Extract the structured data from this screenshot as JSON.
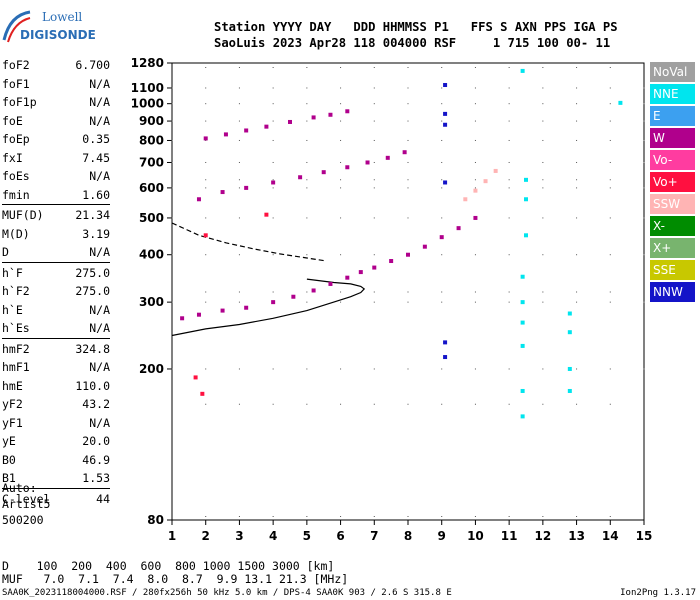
{
  "logo": {
    "line1": "Lowell",
    "line2": "DIGISONDE"
  },
  "header": {
    "line1": "Station YYYY DAY   DDD HHMMSS P1   FFS S AXN PPS IGA PS",
    "line2": "SaoLuis 2023 Apr28 118 004000 RSF     1 715 100 00- 11"
  },
  "params": [
    {
      "label": "foF2",
      "value": "6.700"
    },
    {
      "label": "foF1",
      "value": "N/A"
    },
    {
      "label": "foF1p",
      "value": "N/A"
    },
    {
      "label": "foE",
      "value": "N/A"
    },
    {
      "label": "foEp",
      "value": "0.35"
    },
    {
      "label": "fxI",
      "value": "7.45"
    },
    {
      "label": "foEs",
      "value": "N/A"
    },
    {
      "label": "fmin",
      "value": "1.60"
    },
    {
      "label": "MUF(D)",
      "value": "21.34",
      "sep": true
    },
    {
      "label": "M(D)",
      "value": "3.19"
    },
    {
      "label": "D",
      "value": "N/A"
    },
    {
      "label": "h`F",
      "value": "275.0",
      "sep": true
    },
    {
      "label": "h`F2",
      "value": "275.0"
    },
    {
      "label": "h`E",
      "value": "N/A"
    },
    {
      "label": "h`Es",
      "value": "N/A"
    },
    {
      "label": "hmF2",
      "value": "324.8",
      "sep": true
    },
    {
      "label": "hmF1",
      "value": "N/A"
    },
    {
      "label": "hmE",
      "value": "110.0"
    },
    {
      "label": "yF2",
      "value": "43.2"
    },
    {
      "label": "yF1",
      "value": "N/A"
    },
    {
      "label": "yE",
      "value": "20.0"
    },
    {
      "label": "B0",
      "value": "46.9"
    },
    {
      "label": "B1",
      "value": "1.53"
    },
    {
      "label": "C-level",
      "value": "44",
      "sep": true
    }
  ],
  "auto": {
    "line1": "Auto:",
    "line2": "Artist5",
    "line3": "500200"
  },
  "legend": [
    {
      "label": "NoVal",
      "color": "#a0a0a0"
    },
    {
      "label": "NNE",
      "color": "#00e5ee"
    },
    {
      "label": "E",
      "color": "#3ca0f0"
    },
    {
      "label": "W",
      "color": "#b0008c"
    },
    {
      "label": "Vo-",
      "color": "#ff3ca0"
    },
    {
      "label": "Vo+",
      "color": "#ff1040"
    },
    {
      "label": "SSW",
      "color": "#ffb4b4"
    },
    {
      "label": "X-",
      "color": "#008c00"
    },
    {
      "label": "X+",
      "color": "#78b46e"
    },
    {
      "label": "SSE",
      "color": "#c8c800"
    },
    {
      "label": "NNW",
      "color": "#1414c8"
    }
  ],
  "bottom": {
    "d_line": "D    100  200  400  600  800 1000 1500 3000 [km]",
    "muf_line": "MUF   7.0  7.1  7.4  8.0  8.7  9.9 13.1 21.3 [MHz]"
  },
  "footer": {
    "left": "SAA0K_2023118004000.RSF / 280fx256h 50 kHz 5.0 km / DPS-4 SAA0K 903 / 2.6 S 315.8 E",
    "right": "Ion2Png 1.3.17"
  },
  "chart_data": {
    "type": "scatter",
    "title": "",
    "xlabel": "",
    "ylabel": "",
    "xlim": [
      1,
      15
    ],
    "ylim": [
      80,
      1280
    ],
    "y_scale": "log",
    "x_ticks": [
      1,
      2,
      3,
      4,
      5,
      6,
      7,
      8,
      9,
      10,
      11,
      12,
      13,
      14,
      15
    ],
    "y_ticks": [
      80,
      200,
      300,
      400,
      500,
      600,
      700,
      800,
      900,
      1000,
      1100,
      1280
    ],
    "series": [
      {
        "trace": "F2 first hop",
        "color": "#b0008c",
        "x": [
          1.3,
          1.8,
          2.5,
          3.2,
          4.0,
          4.6,
          5.2,
          5.7,
          6.2,
          6.6,
          7.0,
          7.5,
          8.0,
          8.5,
          9.0,
          9.5,
          10.0
        ],
        "y": [
          272,
          278,
          285,
          290,
          300,
          310,
          322,
          335,
          348,
          360,
          370,
          385,
          400,
          420,
          445,
          470,
          500
        ]
      },
      {
        "trace": "F2 second hop",
        "color": "#b0008c",
        "x": [
          1.8,
          2.5,
          3.2,
          4.0,
          4.8,
          5.5,
          6.2,
          6.8,
          7.4,
          7.9
        ],
        "y": [
          560,
          585,
          600,
          620,
          640,
          660,
          680,
          700,
          720,
          745
        ]
      },
      {
        "trace": "F2 third hop",
        "color": "#b0008c",
        "x": [
          2.0,
          2.6,
          3.2,
          3.8,
          4.5,
          5.2,
          5.7,
          6.2
        ],
        "y": [
          810,
          830,
          850,
          870,
          895,
          920,
          935,
          955
        ]
      },
      {
        "trace": "extraordinary",
        "color": "#ffb4b4",
        "x": [
          9.7,
          10.0,
          10.3,
          10.6
        ],
        "y": [
          560,
          590,
          625,
          665
        ]
      },
      {
        "trace": "vertical column",
        "color": "#1414c8",
        "x": [
          9.1,
          9.1,
          9.1,
          9.1,
          9.1,
          9.1
        ],
        "y": [
          215,
          235,
          620,
          880,
          940,
          1120
        ]
      },
      {
        "trace": "sporadic",
        "color": "#00e5ee",
        "x": [
          11.4,
          11.4,
          11.4,
          11.4,
          11.4,
          11.4,
          11.5,
          11.5,
          11.5,
          11.4,
          12.8,
          12.8,
          12.8,
          12.8,
          14.3
        ],
        "y": [
          150,
          175,
          230,
          265,
          300,
          350,
          450,
          560,
          630,
          1220,
          175,
          200,
          250,
          280,
          1005
        ]
      },
      {
        "trace": "E-layer echoes",
        "color": "#ff1040",
        "x": [
          1.7,
          1.9,
          2.0,
          3.8
        ],
        "y": [
          190,
          172,
          450,
          510
        ]
      }
    ],
    "profile_solid": {
      "color": "#000000",
      "x": [
        1.0,
        2.0,
        3.0,
        4.0,
        5.0,
        5.8,
        6.3,
        6.6,
        6.7,
        6.6,
        6.3,
        5.8,
        5.0
      ],
      "y": [
        245,
        255,
        262,
        272,
        285,
        300,
        310,
        318,
        325,
        330,
        335,
        338,
        345
      ]
    },
    "profile_dashed": {
      "color": "#000000",
      "x": [
        1.0,
        1.8,
        2.6,
        3.4,
        4.2,
        5.0,
        5.5
      ],
      "y": [
        485,
        450,
        430,
        415,
        402,
        392,
        386
      ]
    }
  }
}
